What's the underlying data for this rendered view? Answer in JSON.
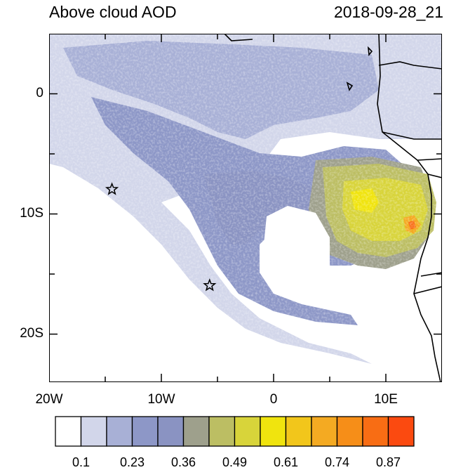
{
  "title": "Above cloud AOD",
  "timestamp": "2018-09-28_21",
  "y_ticks": [
    {
      "label": "0",
      "lat": 0
    },
    {
      "label": "10S",
      "lat": -10
    },
    {
      "label": "20S",
      "lat": -20
    }
  ],
  "x_ticks": [
    {
      "label": "20W",
      "lon": -20
    },
    {
      "label": "10W",
      "lon": -10
    },
    {
      "label": "0",
      "lon": 0
    },
    {
      "label": "10E",
      "lon": 10
    }
  ],
  "extent": {
    "lon_min": -20,
    "lon_max": 15,
    "lat_min": -24,
    "lat_max": 5
  },
  "stations": [
    {
      "lon": -14.4,
      "lat": -7.95
    },
    {
      "lon": -5.7,
      "lat": -15.95
    }
  ],
  "colorbar": {
    "colors": [
      "#ffffff",
      "#d2d6ea",
      "#a8b0d6",
      "#8d97c7",
      "#8a93c2",
      "#9ea08c",
      "#bcbe63",
      "#d8d43a",
      "#f0e40e",
      "#f2c61b",
      "#f4aa22",
      "#f68e18",
      "#f86d14",
      "#fb4a10"
    ],
    "labels": [
      {
        "text": "0.1",
        "index": 1
      },
      {
        "text": "0.23",
        "index": 3
      },
      {
        "text": "0.36",
        "index": 5
      },
      {
        "text": "0.49",
        "index": 7
      },
      {
        "text": "0.61",
        "index": 9
      },
      {
        "text": "0.74",
        "index": 11
      },
      {
        "text": "0.87",
        "index": 13
      }
    ]
  }
}
